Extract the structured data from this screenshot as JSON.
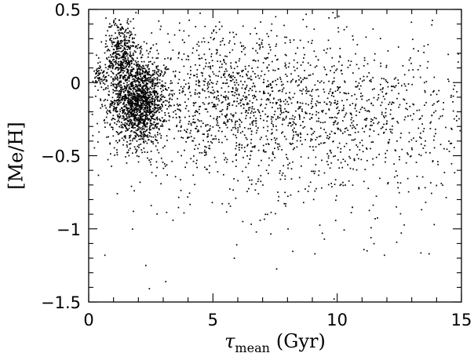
{
  "chart_data": {
    "type": "scatter",
    "title": "",
    "xlabel_symbol": "τ",
    "xlabel_subscript": "mean",
    "xlabel_unit": "(Gyr)",
    "ylabel": "[Me/H]",
    "xlim": [
      0,
      15
    ],
    "ylim": [
      -1.5,
      0.5
    ],
    "x_ticks": [
      0,
      5,
      10,
      15
    ],
    "x_tick_labels": [
      "0",
      "5",
      "10",
      "15"
    ],
    "y_ticks": [
      0.5,
      0,
      -0.5,
      -1,
      -1.5
    ],
    "y_tick_labels": [
      "0.5",
      "0",
      "−0.5",
      "−1",
      "−1.5"
    ],
    "grid": false,
    "legend": "none",
    "marker_color": "#000000",
    "approx_point_count": 4000,
    "density_components": [
      {
        "label": "dense young clump",
        "x_mean": 2.0,
        "x_sd": 0.55,
        "y_mean": -0.13,
        "y_sd": 0.15,
        "weight": 0.38
      },
      {
        "label": "young high-metallicity tail",
        "x_mean": 1.3,
        "x_sd": 0.3,
        "y_mean": 0.2,
        "y_sd": 0.13,
        "weight": 0.1
      },
      {
        "label": "very young knot",
        "x_mean": 0.45,
        "x_sd": 0.12,
        "y_mean": 0.05,
        "y_sd": 0.05,
        "weight": 0.015
      },
      {
        "label": "intermediate ages",
        "x_mean": 5.5,
        "x_sd": 2.3,
        "y_mean": -0.12,
        "y_sd": 0.25,
        "weight": 0.26
      },
      {
        "label": "old broad spread",
        "x_mean": 10.5,
        "x_sd": 2.8,
        "y_mean": -0.25,
        "y_sd": 0.26,
        "weight": 0.23
      },
      {
        "label": "metal-poor outliers",
        "x_mean": 7.5,
        "x_sd": 4.0,
        "y_mean": -0.85,
        "y_sd": 0.22,
        "weight": 0.015
      }
    ],
    "sample_points": [
      {
        "x": 2.3,
        "y": -1.25
      },
      {
        "x": 3.1,
        "y": -1.36
      },
      {
        "x": 9.1,
        "y": -1.17
      },
      {
        "x": 11.9,
        "y": -1.18
      },
      {
        "x": 13.7,
        "y": -1.17
      },
      {
        "x": 11.2,
        "y": -1.15
      },
      {
        "x": 0.65,
        "y": -1.18
      },
      {
        "x": 6.2,
        "y": -0.95
      },
      {
        "x": 9.4,
        "y": -1.03
      },
      {
        "x": 1.8,
        "y": -0.88
      }
    ]
  }
}
